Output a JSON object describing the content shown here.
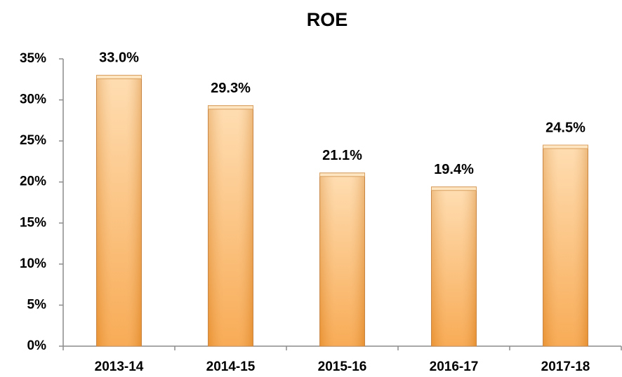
{
  "chart_data": {
    "type": "bar",
    "title": "ROE",
    "categories": [
      "2013-14",
      "2014-15",
      "2015-16",
      "2016-17",
      "2017-18"
    ],
    "values": [
      33.0,
      29.3,
      21.1,
      19.4,
      24.5
    ],
    "value_labels": [
      "33.0%",
      "29.3%",
      "21.1%",
      "19.4%",
      "24.5%"
    ],
    "color": "#f7a03f",
    "ylim": [
      0,
      35
    ],
    "yticks": [
      {
        "value": 0,
        "label": "0%"
      },
      {
        "value": 5,
        "label": "5%"
      },
      {
        "value": 10,
        "label": "10%"
      },
      {
        "value": 15,
        "label": "15%"
      },
      {
        "value": 20,
        "label": "20%"
      },
      {
        "value": 25,
        "label": "25%"
      },
      {
        "value": 30,
        "label": "30%"
      },
      {
        "value": 35,
        "label": "35%"
      }
    ],
    "grid": false
  }
}
